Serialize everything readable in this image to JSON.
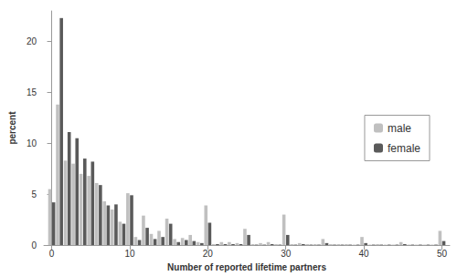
{
  "chart_data": {
    "type": "bar",
    "x_label": "Number of reported lifetime partners",
    "y_label": "percent",
    "x": [
      0,
      1,
      2,
      3,
      4,
      5,
      6,
      7,
      8,
      9,
      10,
      11,
      12,
      13,
      14,
      15,
      16,
      17,
      18,
      19,
      20,
      21,
      22,
      23,
      24,
      25,
      26,
      27,
      28,
      29,
      30,
      31,
      32,
      33,
      34,
      35,
      36,
      37,
      38,
      39,
      40,
      41,
      42,
      43,
      44,
      45,
      46,
      47,
      48,
      49,
      50
    ],
    "series": [
      {
        "name": "male",
        "color": "#c0c0c0",
        "values": [
          5.5,
          13.8,
          8.3,
          8.0,
          7.0,
          6.8,
          6.1,
          4.3,
          3.5,
          2.3,
          5.1,
          0.8,
          2.9,
          1.1,
          1.4,
          2.6,
          0.6,
          0.7,
          1.0,
          0.3,
          3.9,
          0.1,
          0.3,
          0.3,
          0.2,
          1.6,
          0.1,
          0.2,
          0.3,
          0.1,
          3.0,
          0.1,
          0.2,
          0.1,
          0.1,
          0.6,
          0.1,
          0.1,
          0.1,
          0.05,
          0.8,
          0.05,
          0.1,
          0.05,
          0.05,
          0.3,
          0.05,
          0.05,
          0.05,
          0.05,
          1.4
        ]
      },
      {
        "name": "female",
        "color": "#5a5a5a",
        "values": [
          4.2,
          22.3,
          11.1,
          10.5,
          8.5,
          8.2,
          5.9,
          3.9,
          4.0,
          2.1,
          4.9,
          0.5,
          1.7,
          0.6,
          0.8,
          2.1,
          0.3,
          0.5,
          0.4,
          0.2,
          2.2,
          0.1,
          0.1,
          0.1,
          0.1,
          1.0,
          0.05,
          0.05,
          0.1,
          0.05,
          1.0,
          0.05,
          0.1,
          0.05,
          0.05,
          0.2,
          0.05,
          0.05,
          0.05,
          0.05,
          0.2,
          0.05,
          0.05,
          0.05,
          0.05,
          0.1,
          0.05,
          0.05,
          0.05,
          0.05,
          0.4
        ]
      }
    ],
    "xlim": [
      -1,
      51
    ],
    "xticks": [
      0,
      10,
      20,
      30,
      40,
      50
    ],
    "ylim": [
      0,
      23
    ],
    "yticks": [
      0,
      5,
      10,
      15,
      20
    ],
    "grid": false,
    "legend": "right"
  }
}
